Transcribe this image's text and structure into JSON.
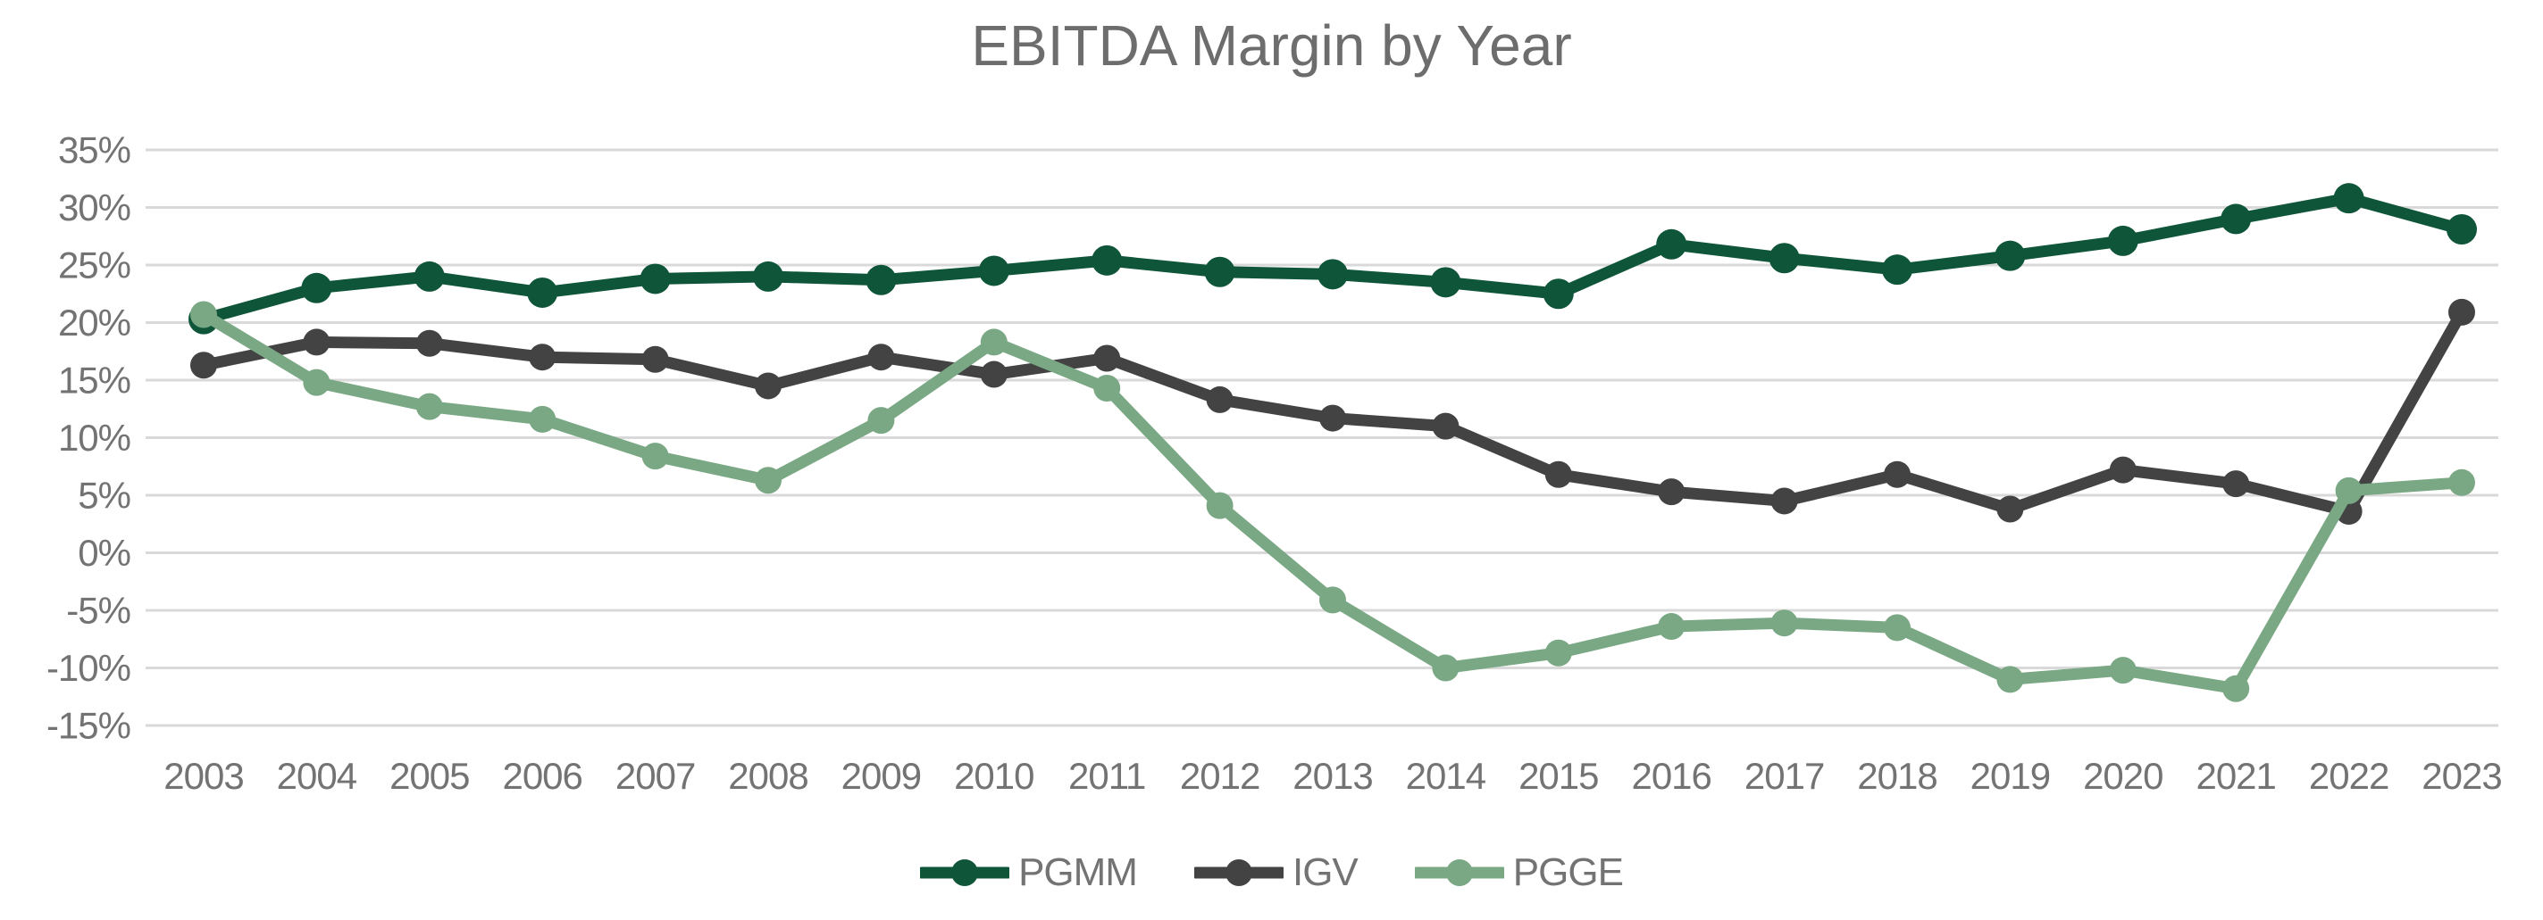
{
  "chart_data": {
    "type": "line",
    "title": "EBITDA Margin by Year",
    "categories": [
      2003,
      2004,
      2005,
      2006,
      2007,
      2008,
      2009,
      2010,
      2011,
      2012,
      2013,
      2014,
      2015,
      2016,
      2017,
      2018,
      2019,
      2020,
      2021,
      2022,
      2023
    ],
    "series": [
      {
        "name": "PGMM",
        "color": "#0f5539",
        "dot_radius": 17,
        "values": [
          20.3,
          23.0,
          24.0,
          22.6,
          23.8,
          24.0,
          23.7,
          24.5,
          25.4,
          24.4,
          24.2,
          23.5,
          22.5,
          26.8,
          25.6,
          24.6,
          25.8,
          27.1,
          29.0,
          30.8,
          28.1
        ]
      },
      {
        "name": "IGV",
        "color": "#434343",
        "dot_radius": 15,
        "values": [
          16.3,
          18.3,
          18.2,
          17.0,
          16.8,
          14.5,
          17.0,
          15.5,
          16.9,
          13.3,
          11.7,
          11.0,
          6.8,
          5.3,
          4.5,
          6.8,
          3.8,
          7.2,
          6.0,
          3.6,
          20.9
        ]
      },
      {
        "name": "PGGE",
        "color": "#7aa884",
        "dot_radius": 15,
        "values": [
          20.7,
          14.8,
          12.7,
          11.6,
          8.4,
          6.3,
          11.5,
          18.3,
          14.3,
          4.1,
          -4.1,
          -10.0,
          -8.7,
          -6.4,
          -6.1,
          -6.5,
          -11.0,
          -10.2,
          -11.8,
          5.4,
          6.1
        ]
      }
    ],
    "ylim": [
      -15,
      35
    ],
    "ytick_step": 5,
    "ytick_suffix": "%",
    "grid": "horizontal-only",
    "legend_position": "bottom",
    "colors": {
      "background": "#ffffff",
      "gridline": "#d9d9d9",
      "tick_text": "#737373",
      "title_text": "#6d6d6d"
    }
  }
}
